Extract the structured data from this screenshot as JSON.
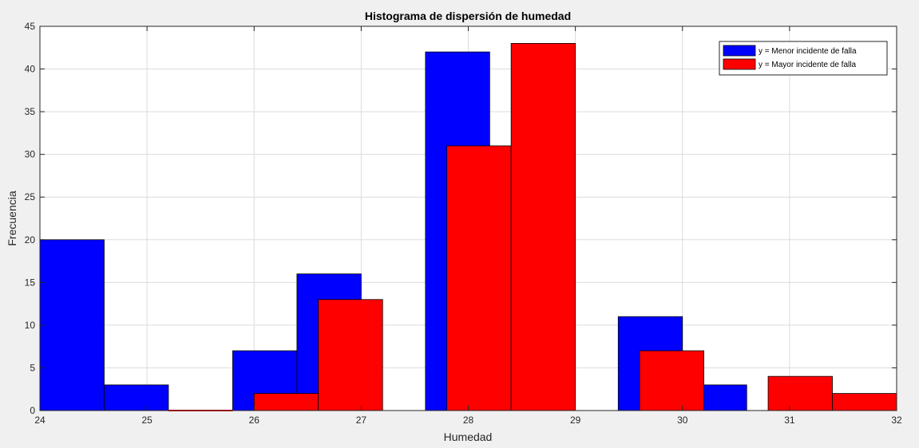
{
  "chart_data": {
    "type": "bar",
    "title": "Histograma de dispersión de humedad",
    "xlabel": "Humedad",
    "ylabel": "Frecuencia",
    "xlim": [
      24,
      32
    ],
    "ylim": [
      0,
      45
    ],
    "xticks": [
      24,
      25,
      26,
      27,
      28,
      29,
      30,
      31,
      32
    ],
    "yticks": [
      0,
      5,
      10,
      15,
      20,
      25,
      30,
      35,
      40,
      45
    ],
    "grid": true,
    "legend_position": "top-right",
    "series": [
      {
        "name": "y = Menor incidente de falla",
        "color": "#0000ff",
        "edge_color": "#000000",
        "bins": [
          {
            "x0": 24.0,
            "x1": 24.6,
            "value": 20
          },
          {
            "x0": 24.6,
            "x1": 25.2,
            "value": 3
          },
          {
            "x0": 25.8,
            "x1": 26.4,
            "value": 7
          },
          {
            "x0": 26.4,
            "x1": 27.0,
            "value": 16
          },
          {
            "x0": 27.6,
            "x1": 28.2,
            "value": 42
          },
          {
            "x0": 29.4,
            "x1": 30.0,
            "value": 11
          },
          {
            "x0": 30.0,
            "x1": 30.6,
            "value": 3
          }
        ]
      },
      {
        "name": "y = Mayor incidente de falla",
        "color": "#ff0000",
        "edge_color": "#000000",
        "bins": [
          {
            "x0": 25.2,
            "x1": 25.8,
            "value": 0
          },
          {
            "x0": 26.0,
            "x1": 26.6,
            "value": 2
          },
          {
            "x0": 26.6,
            "x1": 27.2,
            "value": 13
          },
          {
            "x0": 27.8,
            "x1": 28.4,
            "value": 31
          },
          {
            "x0": 28.4,
            "x1": 29.0,
            "value": 43
          },
          {
            "x0": 29.6,
            "x1": 30.2,
            "value": 7
          },
          {
            "x0": 30.8,
            "x1": 31.4,
            "value": 4
          },
          {
            "x0": 31.4,
            "x1": 32.0,
            "value": 2
          }
        ]
      }
    ]
  }
}
